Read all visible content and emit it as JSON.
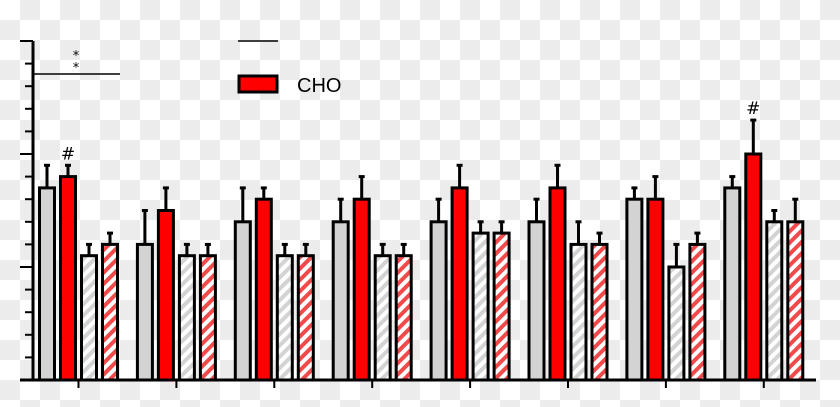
{
  "chart_data": {
    "type": "bar",
    "title": "",
    "xlabel": "",
    "ylabel": "",
    "ylim": [
      0,
      15
    ],
    "y_major_ticks": [
      0,
      5,
      10,
      15
    ],
    "grid": false,
    "legend": {
      "placement": "top-center",
      "entries": [
        {
          "label": "CHO",
          "color": "#ff0000"
        }
      ]
    },
    "categories": [
      "",
      "",
      "",
      "",
      "",
      "",
      "",
      ""
    ],
    "series": [
      {
        "color": "#d3d3d3",
        "pattern": "solid",
        "values": [
          8.5,
          6.0,
          7.0,
          7.0,
          7.0,
          7.0,
          8.0,
          8.5
        ],
        "errors": [
          1.0,
          1.5,
          1.5,
          1.0,
          1.0,
          1.0,
          0.5,
          0.5
        ]
      },
      {
        "color": "#ff0000",
        "pattern": "solid",
        "values": [
          9.0,
          7.5,
          8.0,
          8.0,
          8.5,
          8.5,
          8.0,
          10.0
        ],
        "errors": [
          0.5,
          1.0,
          0.5,
          1.0,
          1.0,
          1.0,
          1.0,
          1.5
        ]
      },
      {
        "color": "#d3d3d3",
        "pattern": "hatched",
        "values": [
          5.5,
          5.5,
          5.5,
          5.5,
          6.5,
          6.0,
          5.0,
          7.0
        ],
        "errors": [
          0.5,
          0.5,
          0.5,
          0.5,
          0.5,
          1.0,
          1.0,
          0.5
        ]
      },
      {
        "color": "#ff0000",
        "pattern": "hatched",
        "values": [
          6.0,
          5.5,
          5.5,
          5.5,
          6.5,
          6.0,
          6.0,
          7.0
        ],
        "errors": [
          0.5,
          0.5,
          0.5,
          0.5,
          0.5,
          0.5,
          0.5,
          1.0
        ]
      }
    ],
    "annotations": [
      {
        "text": "#",
        "group": 0,
        "series": 1
      },
      {
        "text": "#",
        "group": 7,
        "series": 1
      },
      {
        "text": "*",
        "group": 0,
        "type": "significance-bracket"
      },
      {
        "text": "*",
        "group": 0,
        "type": "significance-bracket"
      }
    ]
  }
}
